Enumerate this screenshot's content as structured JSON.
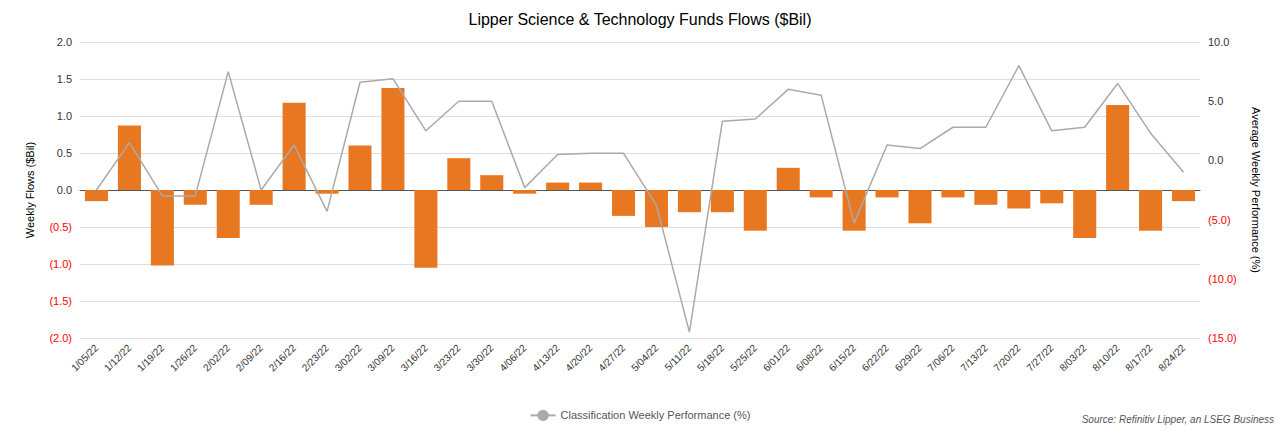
{
  "chart_data": {
    "type": "bar",
    "title": "Lipper Science & Technology Funds Flows ($Bil)",
    "ylabel": "Weekly Flows ($Bil)",
    "y2label": "Average Weekly Performance (%)",
    "annotations": [
      "Source: Refinitiv Lipper, an LSEG Business"
    ],
    "categories": [
      "1/05/22",
      "1/12/22",
      "1/19/22",
      "1/26/22",
      "2/02/22",
      "2/09/22",
      "2/16/22",
      "2/23/22",
      "3/02/22",
      "3/09/22",
      "3/16/22",
      "3/23/22",
      "3/30/22",
      "4/06/22",
      "4/13/22",
      "4/20/22",
      "4/27/22",
      "5/04/22",
      "5/11/22",
      "5/18/22",
      "5/25/22",
      "6/01/22",
      "6/08/22",
      "6/15/22",
      "6/22/22",
      "6/29/22",
      "7/06/22",
      "7/13/22",
      "7/20/22",
      "7/27/22",
      "8/03/22",
      "8/10/22",
      "8/17/22",
      "8/24/22"
    ],
    "series": [
      {
        "type": "bar",
        "color": "#E87722",
        "values": [
          -0.15,
          0.87,
          -1.02,
          -0.2,
          -0.65,
          -0.2,
          1.18,
          -0.05,
          0.6,
          1.38,
          -1.05,
          0.43,
          0.2,
          -0.05,
          0.1,
          0.1,
          -0.35,
          -0.5,
          -0.3,
          -0.3,
          -0.55,
          0.3,
          -0.1,
          -0.55,
          -0.1,
          -0.45,
          -0.1,
          -0.2,
          -0.25,
          -0.18,
          -0.65,
          1.15,
          -0.55,
          -0.15
        ]
      },
      {
        "name": "Classification Weekly Performance (%)",
        "type": "line",
        "color": "#aaaaaa",
        "axis": "y2",
        "values": [
          -2.5,
          1.5,
          -3.0,
          -3.0,
          7.5,
          -2.5,
          1.3,
          -4.3,
          6.6,
          6.9,
          2.5,
          5.0,
          5.0,
          -2.3,
          0.5,
          0.6,
          0.6,
          -3.8,
          -14.5,
          3.3,
          3.5,
          6.0,
          5.5,
          -5.3,
          1.3,
          1.0,
          2.8,
          2.8,
          8.0,
          2.5,
          2.8,
          6.5,
          2.3,
          -1.0
        ]
      }
    ],
    "ylim": [
      -2.0,
      2.0
    ],
    "yticks": [
      {
        "value": 2.0,
        "label": "2.0"
      },
      {
        "value": 1.5,
        "label": "1.5"
      },
      {
        "value": 1.0,
        "label": "1.0"
      },
      {
        "value": 0.5,
        "label": "0.5"
      },
      {
        "value": 0.0,
        "label": "0.0"
      },
      {
        "value": -0.5,
        "label": "(0.5)"
      },
      {
        "value": -1.0,
        "label": "(1.0)"
      },
      {
        "value": -1.5,
        "label": "(1.5)"
      },
      {
        "value": -2.0,
        "label": "(2.0)"
      }
    ],
    "y2lim": [
      -15.0,
      10.0
    ],
    "y2ticks": [
      {
        "value": 10.0,
        "label": "10.0"
      },
      {
        "value": 5.0,
        "label": "5.0"
      },
      {
        "value": 0.0,
        "label": "0.0"
      },
      {
        "value": -5.0,
        "label": "(5.0)"
      },
      {
        "value": -10.0,
        "label": "(10.0)"
      },
      {
        "value": -15.0,
        "label": "(15.0)"
      }
    ],
    "grid": true,
    "legend": "bottom"
  }
}
